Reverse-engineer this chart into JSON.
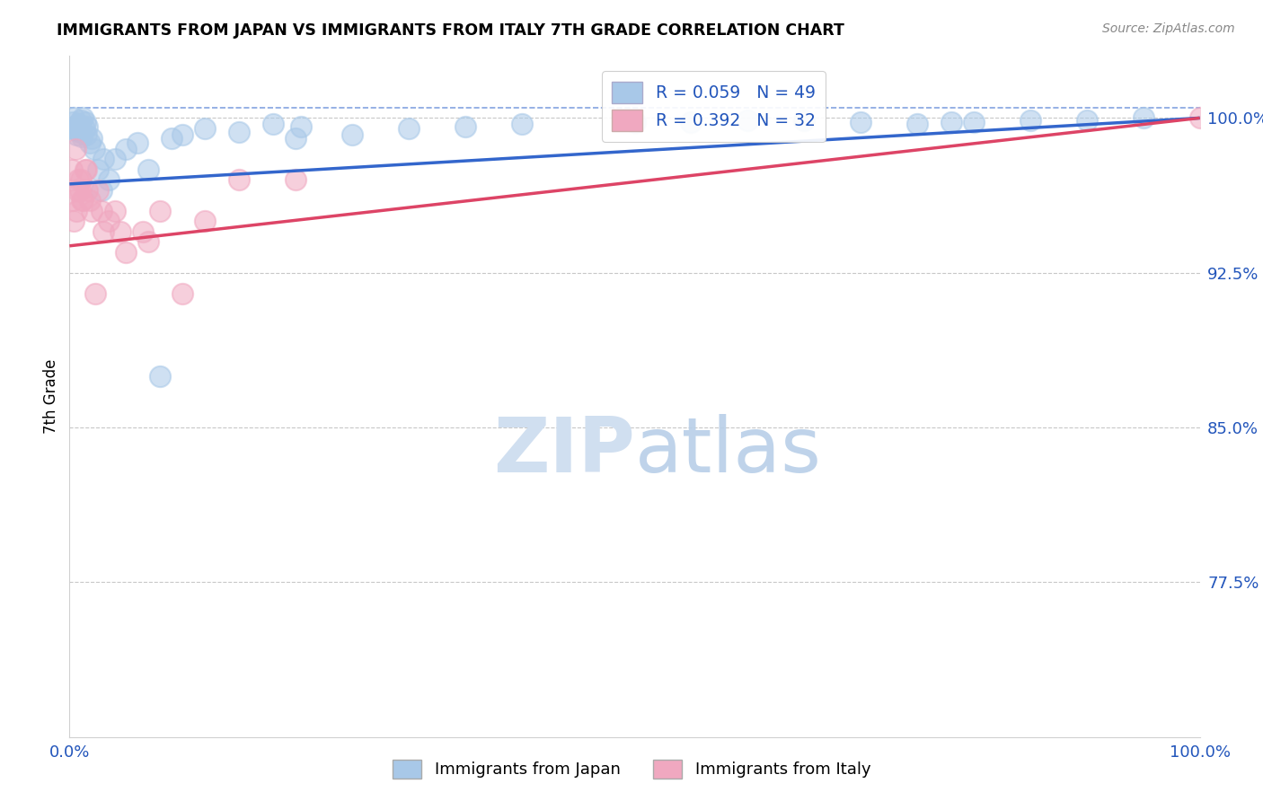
{
  "title": "IMMIGRANTS FROM JAPAN VS IMMIGRANTS FROM ITALY 7TH GRADE CORRELATION CHART",
  "source": "Source: ZipAtlas.com",
  "ylabel": "7th Grade",
  "xlim": [
    0,
    100
  ],
  "ylim": [
    70.0,
    103.0
  ],
  "yticks": [
    77.5,
    85.0,
    92.5,
    100.0
  ],
  "xticks": [
    0,
    100
  ],
  "xtick_labels": [
    "0.0%",
    "100.0%"
  ],
  "ytick_labels": [
    "77.5%",
    "85.0%",
    "92.5%",
    "100.0%"
  ],
  "legend_label1": "Immigrants from Japan",
  "legend_label2": "Immigrants from Italy",
  "R1": 0.059,
  "N1": 49,
  "R2": 0.392,
  "N2": 32,
  "japan_color": "#a8c8e8",
  "italy_color": "#f0a8c0",
  "japan_line_color": "#3366cc",
  "italy_line_color": "#dd4466",
  "watermark_color": "#d0dff0",
  "japan_x": [
    0.2,
    0.3,
    0.4,
    0.5,
    0.6,
    0.7,
    0.8,
    0.9,
    1.0,
    1.1,
    1.2,
    1.3,
    1.4,
    1.5,
    1.6,
    1.8,
    2.0,
    2.2,
    2.5,
    2.8,
    3.0,
    3.5,
    4.0,
    5.0,
    6.0,
    7.0,
    8.0,
    9.0,
    10.0,
    12.0,
    15.0,
    18.0,
    20.0,
    25.0,
    30.0,
    35.0,
    40.0,
    50.0,
    55.0,
    60.0,
    65.0,
    70.0,
    75.0,
    80.0,
    85.0,
    90.0,
    95.0,
    20.5,
    78.0
  ],
  "japan_y": [
    99.5,
    99.8,
    100.0,
    99.6,
    99.2,
    99.4,
    99.7,
    99.3,
    99.9,
    99.1,
    100.0,
    99.5,
    99.8,
    99.2,
    99.6,
    98.8,
    99.0,
    98.5,
    97.5,
    96.5,
    98.0,
    97.0,
    98.0,
    98.5,
    98.8,
    97.5,
    87.5,
    99.0,
    99.2,
    99.5,
    99.3,
    99.7,
    99.0,
    99.2,
    99.5,
    99.6,
    99.7,
    99.8,
    99.8,
    99.9,
    99.9,
    99.8,
    99.7,
    99.8,
    99.9,
    99.9,
    100.0,
    99.6,
    99.8
  ],
  "italy_x": [
    0.2,
    0.3,
    0.5,
    0.6,
    0.7,
    0.8,
    1.0,
    1.2,
    1.4,
    1.6,
    2.0,
    2.5,
    3.0,
    4.0,
    5.0,
    6.5,
    8.0,
    10.0,
    0.4,
    0.9,
    1.5,
    1.8,
    2.3,
    3.5,
    7.0,
    12.0,
    15.0,
    20.0,
    1.1,
    2.8,
    4.5,
    100.0
  ],
  "italy_y": [
    97.5,
    96.0,
    98.5,
    95.5,
    96.5,
    97.0,
    97.0,
    96.0,
    97.5,
    96.5,
    95.5,
    96.5,
    94.5,
    95.5,
    93.5,
    94.5,
    95.5,
    91.5,
    95.0,
    96.5,
    97.5,
    96.0,
    91.5,
    95.0,
    94.0,
    95.0,
    97.0,
    97.0,
    96.0,
    95.5,
    94.5,
    100.0
  ]
}
